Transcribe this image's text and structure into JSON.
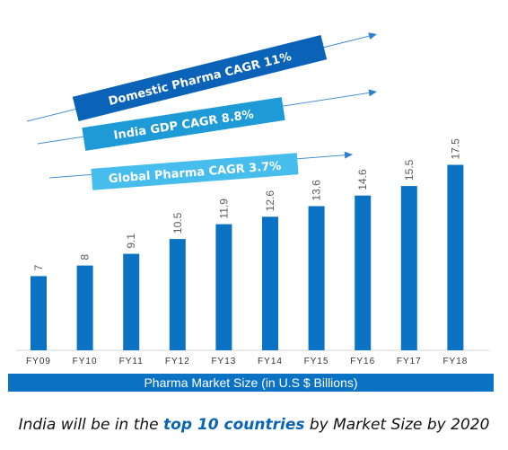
{
  "chart_data": {
    "type": "bar",
    "categories": [
      "FY09",
      "FY10",
      "FY11",
      "FY12",
      "FY13",
      "FY14",
      "FY15",
      "FY16",
      "FY17",
      "FY18"
    ],
    "values": [
      7,
      8,
      9.1,
      10.5,
      11.9,
      12.6,
      13.6,
      14.6,
      15.5,
      17.5
    ],
    "value_labels": [
      "7",
      "8",
      "9.1",
      "10.5",
      "11.9",
      "12.6",
      "13.6",
      "14.6",
      "15.5",
      "17.5"
    ],
    "ylim": [
      0,
      20
    ],
    "grid": false,
    "bar_color": "#0b72c4",
    "annotations": [
      {
        "text": "Domestic Pharma CAGR 11%",
        "color": "#0b63b8"
      },
      {
        "text": "India GDP CAGR 8.8%",
        "color": "#1e9ad6"
      },
      {
        "text": "Global Pharma CAGR 3.7%",
        "color": "#46bdec"
      }
    ]
  },
  "footer": {
    "label": "Pharma Market Size (in U.S $ Billions)"
  },
  "caption": {
    "prefix": "India will be in the ",
    "highlight": "top 10 countries",
    "suffix": " by Market Size by 2020"
  }
}
